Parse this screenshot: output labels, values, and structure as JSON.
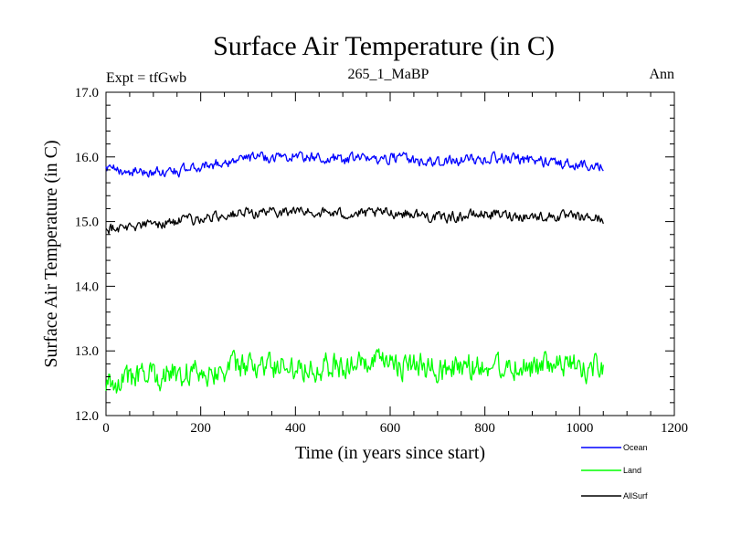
{
  "chart_data": {
    "type": "line",
    "title": "Surface Air Temperature (in C)",
    "subtitle": "265_1_MaBP",
    "left_label": "Expt = tfGwb",
    "right_label": "Ann",
    "xlabel": "Time (in years since start)",
    "ylabel": "Surface Air Temperature (in C)",
    "xlim": [
      0,
      1200
    ],
    "ylim": [
      12.0,
      17.0
    ],
    "x_ticks": [
      0,
      200,
      400,
      600,
      800,
      1000,
      1200
    ],
    "x_tick_labels": [
      "0",
      "200",
      "400",
      "600",
      "800",
      "1000",
      "1200"
    ],
    "y_ticks": [
      12.0,
      13.0,
      14.0,
      15.0,
      16.0,
      17.0
    ],
    "y_tick_labels": [
      "12.0",
      "13.0",
      "14.0",
      "15.0",
      "16.0",
      "17.0"
    ],
    "x": [
      0,
      50,
      100,
      150,
      200,
      250,
      300,
      350,
      400,
      450,
      500,
      550,
      600,
      650,
      700,
      750,
      800,
      850,
      900,
      950,
      1000,
      1050
    ],
    "series": [
      {
        "name": "Ocean",
        "color": "#0000ff",
        "values": [
          15.8,
          15.78,
          15.76,
          15.78,
          15.85,
          15.92,
          15.98,
          16.0,
          16.02,
          15.98,
          15.96,
          15.97,
          15.99,
          15.96,
          15.9,
          15.95,
          15.98,
          15.97,
          15.95,
          15.92,
          15.87,
          15.87
        ],
        "noise": 0.07
      },
      {
        "name": "Land",
        "color": "#00ff00",
        "values": [
          12.5,
          12.58,
          12.62,
          12.66,
          12.68,
          12.72,
          12.75,
          12.75,
          12.78,
          12.76,
          12.77,
          12.78,
          12.8,
          12.76,
          12.72,
          12.74,
          12.78,
          12.78,
          12.76,
          12.76,
          12.76,
          12.74
        ],
        "noise": 0.18
      },
      {
        "name": "AllSurf",
        "color": "#000000",
        "values": [
          14.9,
          14.92,
          14.96,
          15.0,
          15.04,
          15.1,
          15.13,
          15.15,
          15.16,
          15.14,
          15.12,
          15.12,
          15.14,
          15.12,
          15.06,
          15.08,
          15.12,
          15.1,
          15.08,
          15.08,
          15.06,
          15.05
        ],
        "noise": 0.07
      }
    ],
    "legend_position": "bottom-right"
  }
}
